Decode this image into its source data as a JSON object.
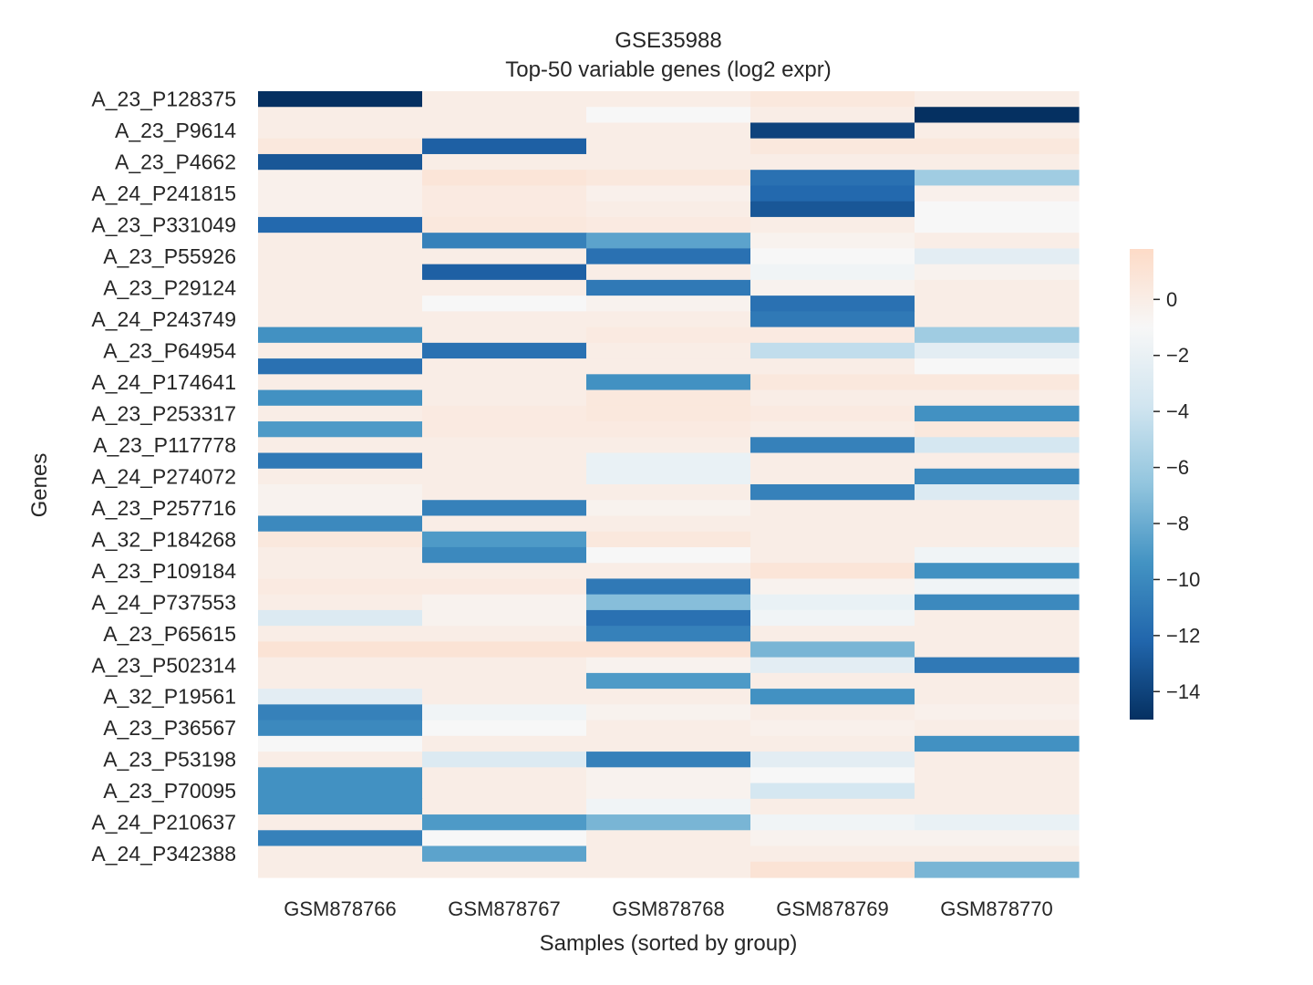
{
  "chart_data": {
    "type": "heatmap",
    "title": "GSE35988",
    "subtitle": "Top-50 variable genes (log2 expr)",
    "xlabel": "Samples (sorted by group)",
    "ylabel": "Genes",
    "x_categories": [
      "GSM878766",
      "GSM878767",
      "GSM878768",
      "GSM878769",
      "GSM878770"
    ],
    "row_tick_labels": [
      "A_23_P128375",
      "A_23_P9614",
      "A_23_P4662",
      "A_24_P241815",
      "A_23_P331049",
      "A_23_P55926",
      "A_23_P29124",
      "A_24_P243749",
      "A_23_P64954",
      "A_24_P174641",
      "A_23_P253317",
      "A_23_P117778",
      "A_24_P274072",
      "A_23_P257716",
      "A_32_P184268",
      "A_23_P109184",
      "A_24_P737553",
      "A_23_P65615",
      "A_23_P502314",
      "A_32_P19561",
      "A_23_P36567",
      "A_23_P53198",
      "A_23_P70095",
      "A_24_P210637",
      "A_24_P342388"
    ],
    "row_count": 50,
    "values": [
      [
        -15.0,
        0.0,
        0.0,
        0.5,
        0.0
      ],
      [
        0.0,
        0.0,
        -1.0,
        0.0,
        -15.0
      ],
      [
        0.0,
        0.0,
        0.0,
        -14.0,
        0.0
      ],
      [
        0.5,
        -12.5,
        0.0,
        0.5,
        0.5
      ],
      [
        -13.0,
        0.0,
        0.0,
        0.0,
        0.0
      ],
      [
        -0.3,
        0.8,
        0.5,
        -11.5,
        -6.0
      ],
      [
        -0.3,
        0.3,
        -0.3,
        -12.0,
        -0.3
      ],
      [
        -0.3,
        0.3,
        0.0,
        -13.0,
        -1.0
      ],
      [
        -12.0,
        0.5,
        0.3,
        0.0,
        -1.0
      ],
      [
        0.0,
        -10.5,
        -8.5,
        -0.5,
        0.0
      ],
      [
        0.0,
        0.0,
        -11.5,
        -1.0,
        -2.5
      ],
      [
        0.0,
        -12.5,
        0.0,
        -1.5,
        -0.5
      ],
      [
        0.0,
        0.0,
        -11.0,
        -0.5,
        0.0
      ],
      [
        0.0,
        -1.0,
        -0.5,
        -11.5,
        0.0
      ],
      [
        0.0,
        0.0,
        0.0,
        -11.0,
        0.0
      ],
      [
        -9.5,
        0.0,
        0.3,
        0.3,
        -6.0
      ],
      [
        0.0,
        -11.5,
        0.0,
        -4.5,
        -2.5
      ],
      [
        -11.5,
        0.0,
        0.0,
        0.0,
        -1.0
      ],
      [
        0.0,
        0.0,
        -9.5,
        0.5,
        0.5
      ],
      [
        -9.5,
        0.0,
        0.5,
        0.0,
        0.0
      ],
      [
        0.0,
        0.3,
        0.5,
        0.3,
        -9.5
      ],
      [
        -9.0,
        0.3,
        0.3,
        0.0,
        0.5
      ],
      [
        0.0,
        0.0,
        0.0,
        -10.5,
        -3.5
      ],
      [
        -11.0,
        0.0,
        -2.0,
        0.0,
        0.0
      ],
      [
        0.0,
        0.0,
        -2.0,
        0.0,
        -10.0
      ],
      [
        -0.5,
        0.0,
        0.0,
        -10.5,
        -3.0
      ],
      [
        -0.5,
        -10.5,
        -0.5,
        0.0,
        0.0
      ],
      [
        -10.0,
        0.0,
        0.0,
        0.0,
        0.0
      ],
      [
        0.5,
        -9.0,
        0.5,
        0.0,
        0.0
      ],
      [
        0.0,
        -10.0,
        -1.0,
        0.0,
        -1.5
      ],
      [
        0.0,
        0.0,
        0.0,
        0.8,
        -9.5
      ],
      [
        0.3,
        0.3,
        -11.0,
        -0.5,
        -1.5
      ],
      [
        0.0,
        -0.5,
        -7.0,
        -2.0,
        -10.0
      ],
      [
        -3.0,
        -0.5,
        -11.5,
        -1.5,
        0.0
      ],
      [
        0.0,
        0.0,
        -10.5,
        0.0,
        0.0
      ],
      [
        1.0,
        1.0,
        1.0,
        -7.5,
        0.0
      ],
      [
        0.0,
        0.0,
        -0.5,
        -2.5,
        -11.0
      ],
      [
        0.0,
        0.0,
        -9.0,
        0.0,
        0.0
      ],
      [
        -2.5,
        0.0,
        0.0,
        -9.5,
        0.0
      ],
      [
        -10.5,
        -1.5,
        -0.5,
        0.0,
        -0.3
      ],
      [
        -10.0,
        -1.0,
        0.0,
        -0.3,
        0.0
      ],
      [
        -1.0,
        0.0,
        0.0,
        0.0,
        -9.5
      ],
      [
        0.0,
        -3.0,
        -10.5,
        -2.5,
        0.0
      ],
      [
        -9.5,
        0.0,
        -0.5,
        -1.0,
        0.0
      ],
      [
        -9.5,
        0.0,
        -0.5,
        -3.5,
        0.0
      ],
      [
        -9.5,
        0.0,
        -1.5,
        0.0,
        0.0
      ],
      [
        0.0,
        -9.0,
        -7.5,
        -1.5,
        -2.0
      ],
      [
        -10.5,
        -1.0,
        0.0,
        -0.5,
        -0.5
      ],
      [
        0.0,
        -8.5,
        0.0,
        0.0,
        0.0
      ],
      [
        0.0,
        0.0,
        0.0,
        1.0,
        -7.5
      ]
    ],
    "colorbar": {
      "min": -15.0,
      "max": 1.8,
      "ticks": [
        0,
        -2,
        -4,
        -6,
        -8,
        -10,
        -12,
        -14
      ],
      "tick_labels": [
        "0",
        "−2",
        "−4",
        "−6",
        "−8",
        "−10",
        "−12",
        "−14"
      ],
      "colormap": "RdBu_r",
      "stops": [
        "#053061",
        "#2166ac",
        "#4393c3",
        "#92c5de",
        "#d1e5f0",
        "#f7f7f7",
        "#fddbc7"
      ]
    },
    "grid": false,
    "legend": "colorbar-right"
  }
}
